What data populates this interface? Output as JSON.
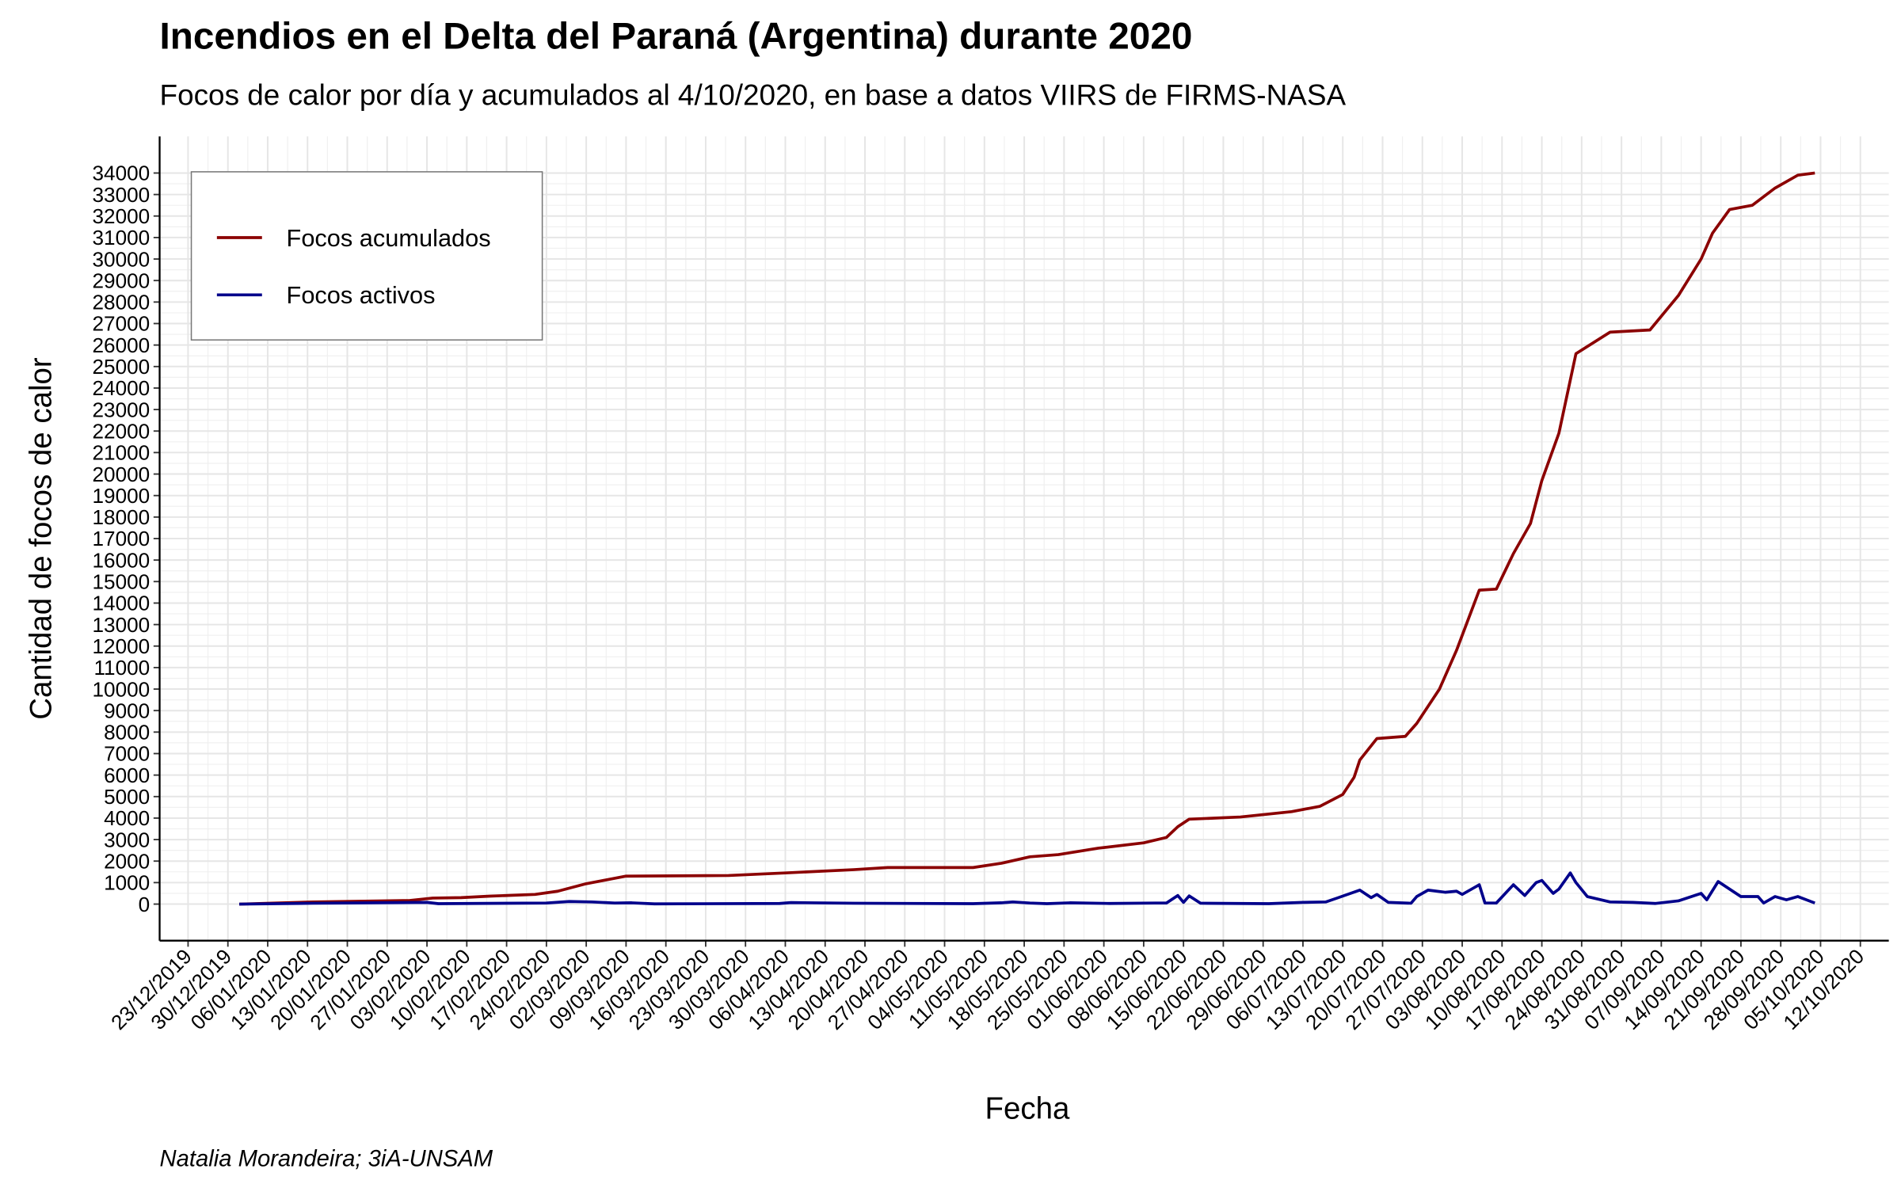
{
  "chart_data": {
    "type": "line",
    "title": "Incendios en el Delta del Paraná (Argentina) durante 2020",
    "subtitle": "Focos de calor por día y acumulados al 4/10/2020, en base a datos VIIRS de FIRMS-NASA",
    "x_label": "Fecha",
    "y_label": "Cantidad de focos de calor",
    "caption": "Natalia Morandeira; 3iA-UNSAM",
    "grid": true,
    "legend": "top-left",
    "xlim": [
      "18/12/2019",
      "17/10/2020"
    ],
    "xticks": [
      "23/12/2019",
      "30/12/2019",
      "06/01/2020",
      "13/01/2020",
      "20/01/2020",
      "27/01/2020",
      "03/02/2020",
      "10/02/2020",
      "17/02/2020",
      "24/02/2020",
      "02/03/2020",
      "09/03/2020",
      "16/03/2020",
      "23/03/2020",
      "30/03/2020",
      "06/04/2020",
      "13/04/2020",
      "20/04/2020",
      "27/04/2020",
      "04/05/2020",
      "11/05/2020",
      "18/05/2020",
      "25/05/2020",
      "01/06/2020",
      "08/06/2020",
      "15/06/2020",
      "22/06/2020",
      "29/06/2020",
      "06/07/2020",
      "13/07/2020",
      "20/07/2020",
      "27/07/2020",
      "03/08/2020",
      "10/08/2020",
      "17/08/2020",
      "24/08/2020",
      "31/08/2020",
      "07/09/2020",
      "14/09/2020",
      "21/09/2020",
      "28/09/2020",
      "05/10/2020",
      "12/10/2020"
    ],
    "ylim": [
      -1700,
      35700
    ],
    "yticks": [
      0,
      1000,
      2000,
      3000,
      4000,
      5000,
      6000,
      7000,
      8000,
      9000,
      10000,
      11000,
      12000,
      13000,
      14000,
      15000,
      16000,
      17000,
      18000,
      19000,
      20000,
      21000,
      22000,
      23000,
      24000,
      25000,
      26000,
      27000,
      28000,
      29000,
      30000,
      31000,
      32000,
      33000,
      34000
    ],
    "series": [
      {
        "name": "Focos acumulados",
        "color": "#8b0000",
        "x": [
          "01/01/2020",
          "14/01/2020",
          "31/01/2020",
          "04/02/2020",
          "09/02/2020",
          "14/02/2020",
          "22/02/2020",
          "26/02/2020",
          "02/03/2020",
          "05/03/2020",
          "09/03/2020",
          "27/03/2020",
          "06/04/2020",
          "18/04/2020",
          "24/04/2020",
          "09/05/2020",
          "14/05/2020",
          "19/05/2020",
          "24/05/2020",
          "31/05/2020",
          "08/06/2020",
          "12/06/2020",
          "14/06/2020",
          "16/06/2020",
          "25/06/2020",
          "04/07/2020",
          "09/07/2020",
          "13/07/2020",
          "15/07/2020",
          "16/07/2020",
          "19/07/2020",
          "24/07/2020",
          "26/07/2020",
          "30/07/2020",
          "02/08/2020",
          "06/08/2020",
          "09/08/2020",
          "12/08/2020",
          "15/08/2020",
          "17/08/2020",
          "20/08/2020",
          "23/08/2020",
          "29/08/2020",
          "05/09/2020",
          "10/09/2020",
          "14/09/2020",
          "16/09/2020",
          "19/09/2020",
          "23/09/2020",
          "27/09/2020",
          "01/10/2020",
          "04/10/2020"
        ],
        "values": [
          0,
          100,
          170,
          280,
          300,
          370,
          450,
          600,
          950,
          1100,
          1300,
          1330,
          1450,
          1600,
          1700,
          1700,
          1900,
          2200,
          2300,
          2600,
          2850,
          3100,
          3600,
          3950,
          4050,
          4300,
          4550,
          5100,
          5900,
          6700,
          7700,
          7800,
          8400,
          10000,
          11800,
          14600,
          14650,
          16300,
          17700,
          19700,
          21900,
          25600,
          26600,
          26700,
          28300,
          30000,
          31200,
          32300,
          32500,
          33300,
          33900,
          34000
        ]
      },
      {
        "name": "Focos activos",
        "color": "#00008b",
        "x": [
          "01/01/2020",
          "14/01/2020",
          "03/02/2020",
          "05/02/2020",
          "24/02/2020",
          "28/02/2020",
          "03/03/2020",
          "07/03/2020",
          "10/03/2020",
          "14/03/2020",
          "05/04/2020",
          "07/04/2020",
          "18/04/2020",
          "09/05/2020",
          "14/05/2020",
          "16/05/2020",
          "19/05/2020",
          "22/05/2020",
          "26/05/2020",
          "02/06/2020",
          "10/06/2020",
          "12/06/2020",
          "14/06/2020",
          "15/06/2020",
          "16/06/2020",
          "18/06/2020",
          "30/06/2020",
          "06/07/2020",
          "10/07/2020",
          "12/07/2020",
          "16/07/2020",
          "18/07/2020",
          "19/07/2020",
          "21/07/2020",
          "25/07/2020",
          "26/07/2020",
          "28/07/2020",
          "31/07/2020",
          "02/08/2020",
          "03/08/2020",
          "05/08/2020",
          "06/08/2020",
          "07/08/2020",
          "09/08/2020",
          "12/08/2020",
          "14/08/2020",
          "16/08/2020",
          "17/08/2020",
          "19/08/2020",
          "20/08/2020",
          "22/08/2020",
          "23/08/2020",
          "25/08/2020",
          "29/08/2020",
          "02/09/2020",
          "06/09/2020",
          "10/09/2020",
          "14/09/2020",
          "15/09/2020",
          "17/09/2020",
          "21/09/2020",
          "24/09/2020",
          "25/09/2020",
          "27/09/2020",
          "29/09/2020",
          "01/10/2020",
          "04/10/2020"
        ],
        "values": [
          0,
          40,
          80,
          20,
          50,
          120,
          100,
          50,
          60,
          10,
          30,
          70,
          40,
          20,
          60,
          100,
          50,
          20,
          60,
          30,
          50,
          50,
          400,
          80,
          380,
          40,
          20,
          80,
          100,
          280,
          650,
          300,
          450,
          80,
          40,
          350,
          650,
          550,
          600,
          450,
          750,
          900,
          50,
          50,
          900,
          400,
          1000,
          1100,
          500,
          700,
          1450,
          1000,
          350,
          100,
          80,
          30,
          150,
          500,
          200,
          1050,
          350,
          350,
          50,
          350,
          200,
          350,
          50
        ]
      }
    ]
  }
}
